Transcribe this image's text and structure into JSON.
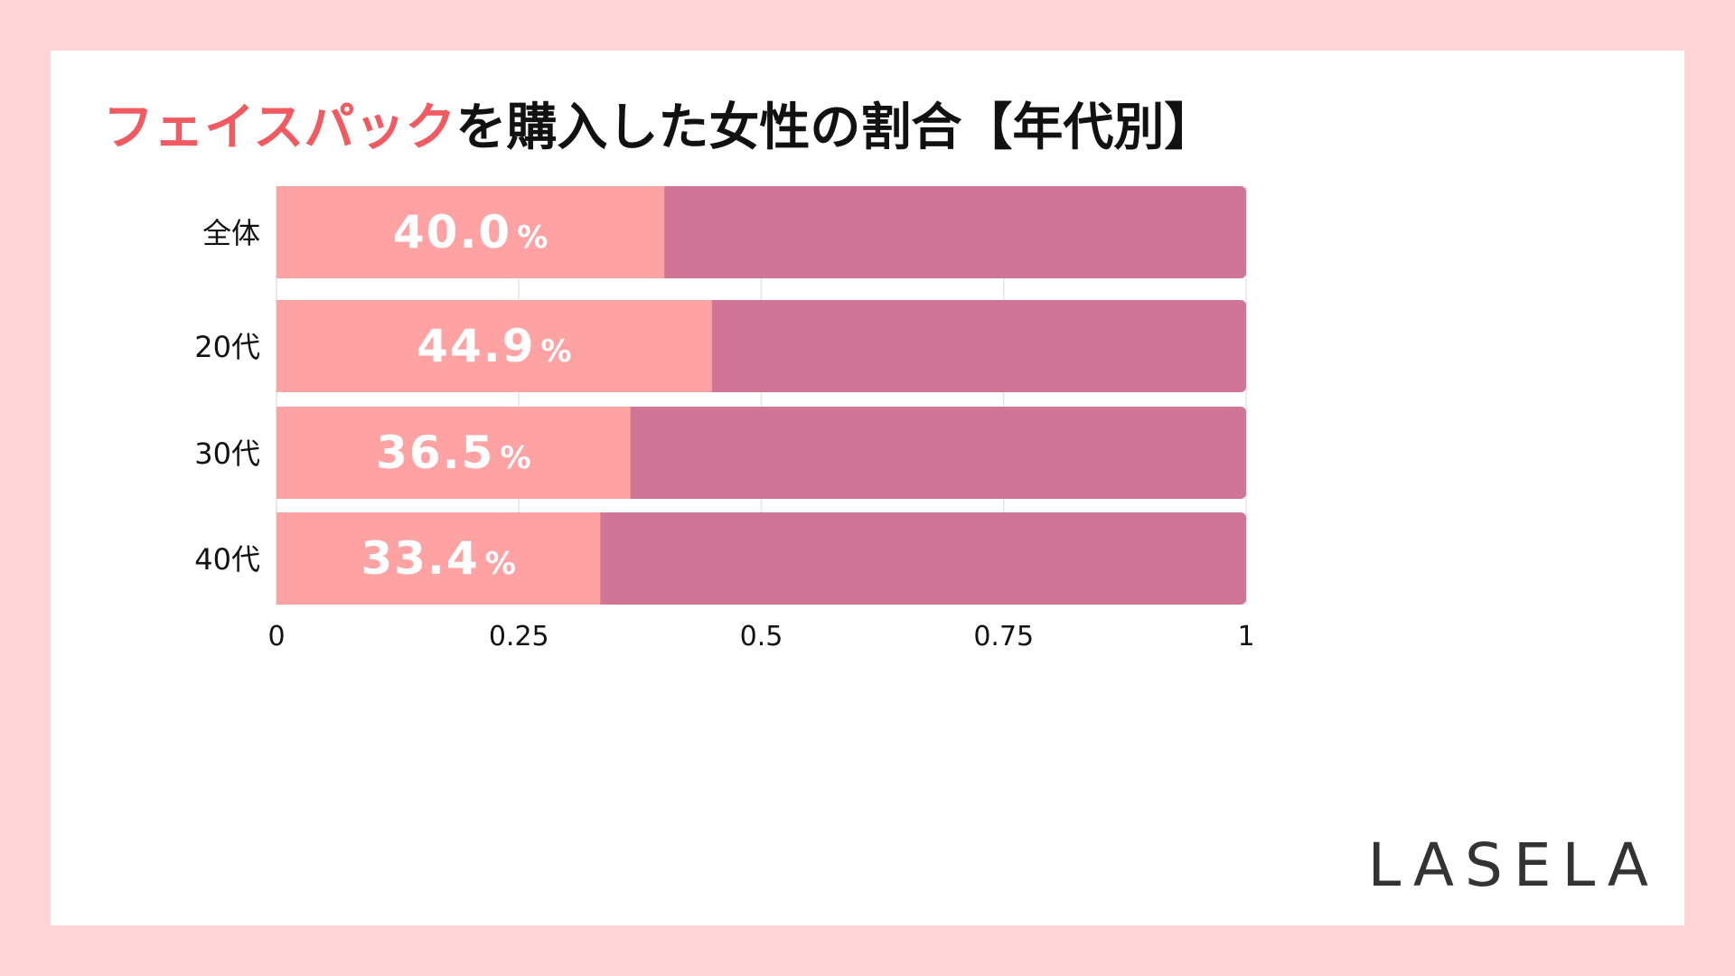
{
  "title": {
    "highlight": "フェイスパック",
    "rest": "を購入した女性の割合【年代別】"
  },
  "brand": "LASELA",
  "colors": {
    "background": "#FFD4D6",
    "panel": "#FFFFFF",
    "title_accent": "#F25A62",
    "bar_value": "#FFA2A3",
    "bar_rest": "#D07595",
    "grid": "#E4E4E4",
    "label_text": "#111111",
    "value_text": "#FFFFFF"
  },
  "chart_data": {
    "type": "bar",
    "orientation": "horizontal",
    "stacked": true,
    "categories": [
      "全体",
      "20代",
      "30代",
      "40代"
    ],
    "values": [
      0.4,
      0.449,
      0.365,
      0.334
    ],
    "value_labels": [
      "40.0",
      "44.9",
      "36.5",
      "33.4"
    ],
    "value_unit": "%",
    "xlim": [
      0,
      1
    ],
    "x_ticks": [
      "0",
      "0.25",
      "0.5",
      "0.75",
      "1"
    ],
    "grid": true
  }
}
